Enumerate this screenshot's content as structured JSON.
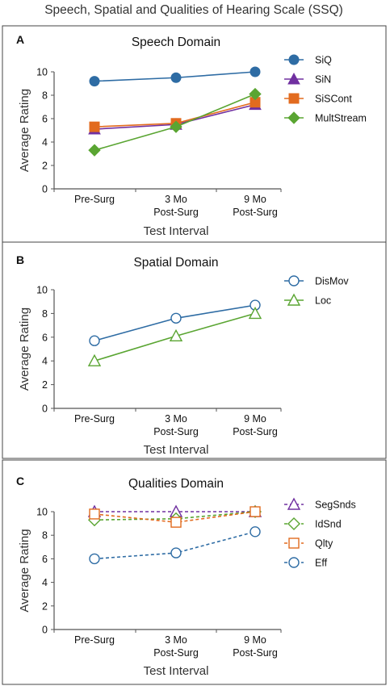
{
  "title": "Speech, Spatial and Qualities of Hearing Scale (SSQ)",
  "chart_data": [
    {
      "type": "line",
      "panel_label": "A",
      "title": "Speech Domain",
      "xlabel": "Test Interval",
      "ylabel": "Average Rating",
      "categories": [
        "Pre-Surg",
        "3 Mo\nPost-Surg",
        "9 Mo\nPost-Surg"
      ],
      "ylim": [
        0,
        10
      ],
      "yticks": [
        0,
        2,
        4,
        6,
        8,
        10
      ],
      "grid": false,
      "legend": "right",
      "series": [
        {
          "name": "SiQ",
          "values": [
            9.2,
            9.5,
            10.0
          ],
          "color": "#2e6ca4",
          "marker": "circle",
          "filled": true,
          "dashed": false
        },
        {
          "name": "SiN",
          "values": [
            5.1,
            5.5,
            7.2
          ],
          "color": "#7030a0",
          "marker": "triangle",
          "filled": true,
          "dashed": false
        },
        {
          "name": "SiSCont",
          "values": [
            5.3,
            5.6,
            7.4
          ],
          "color": "#e26b1f",
          "marker": "square",
          "filled": true,
          "dashed": false
        },
        {
          "name": "MultStream",
          "values": [
            3.3,
            5.3,
            8.1
          ],
          "color": "#5aa532",
          "marker": "diamond",
          "filled": true,
          "dashed": false
        }
      ]
    },
    {
      "type": "line",
      "panel_label": "B",
      "title": "Spatial Domain",
      "xlabel": "Test Interval",
      "ylabel": "Average Rating",
      "categories": [
        "Pre-Surg",
        "3 Mo\nPost-Surg",
        "9 Mo\nPost-Surg"
      ],
      "ylim": [
        0,
        10
      ],
      "yticks": [
        0,
        2,
        4,
        6,
        8,
        10
      ],
      "grid": false,
      "legend": "right",
      "series": [
        {
          "name": "DisMov",
          "values": [
            5.7,
            7.6,
            8.7
          ],
          "color": "#2e6ca4",
          "marker": "circle",
          "filled": false,
          "dashed": false
        },
        {
          "name": "Loc",
          "values": [
            4.0,
            6.1,
            8.0
          ],
          "color": "#5aa532",
          "marker": "triangle",
          "filled": false,
          "dashed": false
        }
      ]
    },
    {
      "type": "line",
      "panel_label": "C",
      "title": "Qualities Domain",
      "xlabel": "Test Interval",
      "ylabel": "Average Rating",
      "categories": [
        "Pre-Surg",
        "3 Mo\nPost-Surg",
        "9 Mo\nPost-Surg"
      ],
      "ylim": [
        0,
        10
      ],
      "yticks": [
        0,
        2,
        4,
        6,
        8,
        10
      ],
      "grid": false,
      "legend": "right",
      "series": [
        {
          "name": "SegSnds",
          "values": [
            10.0,
            10.0,
            10.0
          ],
          "color": "#7030a0",
          "marker": "triangle",
          "filled": false,
          "dashed": true
        },
        {
          "name": "IdSnd",
          "values": [
            9.3,
            9.4,
            10.0
          ],
          "color": "#5aa532",
          "marker": "diamond",
          "filled": false,
          "dashed": true
        },
        {
          "name": "Qlty",
          "values": [
            9.8,
            9.1,
            10.0
          ],
          "color": "#e26b1f",
          "marker": "square",
          "filled": false,
          "dashed": true
        },
        {
          "name": "Eff",
          "values": [
            6.0,
            6.5,
            8.3
          ],
          "color": "#2e6ca4",
          "marker": "circle",
          "filled": false,
          "dashed": true
        }
      ]
    }
  ]
}
